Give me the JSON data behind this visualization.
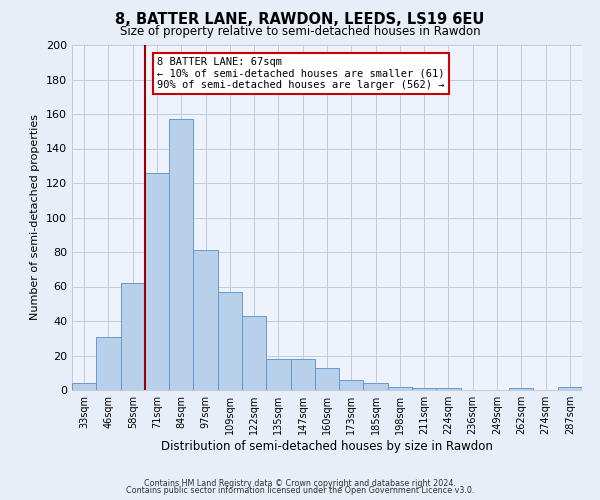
{
  "title": "8, BATTER LANE, RAWDON, LEEDS, LS19 6EU",
  "subtitle": "Size of property relative to semi-detached houses in Rawdon",
  "xlabel": "Distribution of semi-detached houses by size in Rawdon",
  "ylabel": "Number of semi-detached properties",
  "bin_labels": [
    "33sqm",
    "46sqm",
    "58sqm",
    "71sqm",
    "84sqm",
    "97sqm",
    "109sqm",
    "122sqm",
    "135sqm",
    "147sqm",
    "160sqm",
    "173sqm",
    "185sqm",
    "198sqm",
    "211sqm",
    "224sqm",
    "236sqm",
    "249sqm",
    "262sqm",
    "274sqm",
    "287sqm"
  ],
  "bin_values": [
    4,
    31,
    62,
    126,
    157,
    81,
    57,
    43,
    18,
    18,
    13,
    6,
    4,
    2,
    1,
    1,
    0,
    0,
    1,
    0,
    2
  ],
  "bar_color": "#b8d0ea",
  "bar_edge_color": "#6699cc",
  "vline_color": "#990000",
  "ylim": [
    0,
    200
  ],
  "yticks": [
    0,
    20,
    40,
    60,
    80,
    100,
    120,
    140,
    160,
    180,
    200
  ],
  "annotation_title": "8 BATTER LANE: 67sqm",
  "annotation_line1": "← 10% of semi-detached houses are smaller (61)",
  "annotation_line2": "90% of semi-detached houses are larger (562) →",
  "annotation_box_color": "#ffffff",
  "annotation_box_edge": "#cc0000",
  "footer1": "Contains HM Land Registry data © Crown copyright and database right 2024.",
  "footer2": "Contains public sector information licensed under the Open Government Licence v3.0.",
  "bg_color": "#e8eef8",
  "plot_bg_color": "#eef2fc",
  "grid_color": "#c0ccdd"
}
